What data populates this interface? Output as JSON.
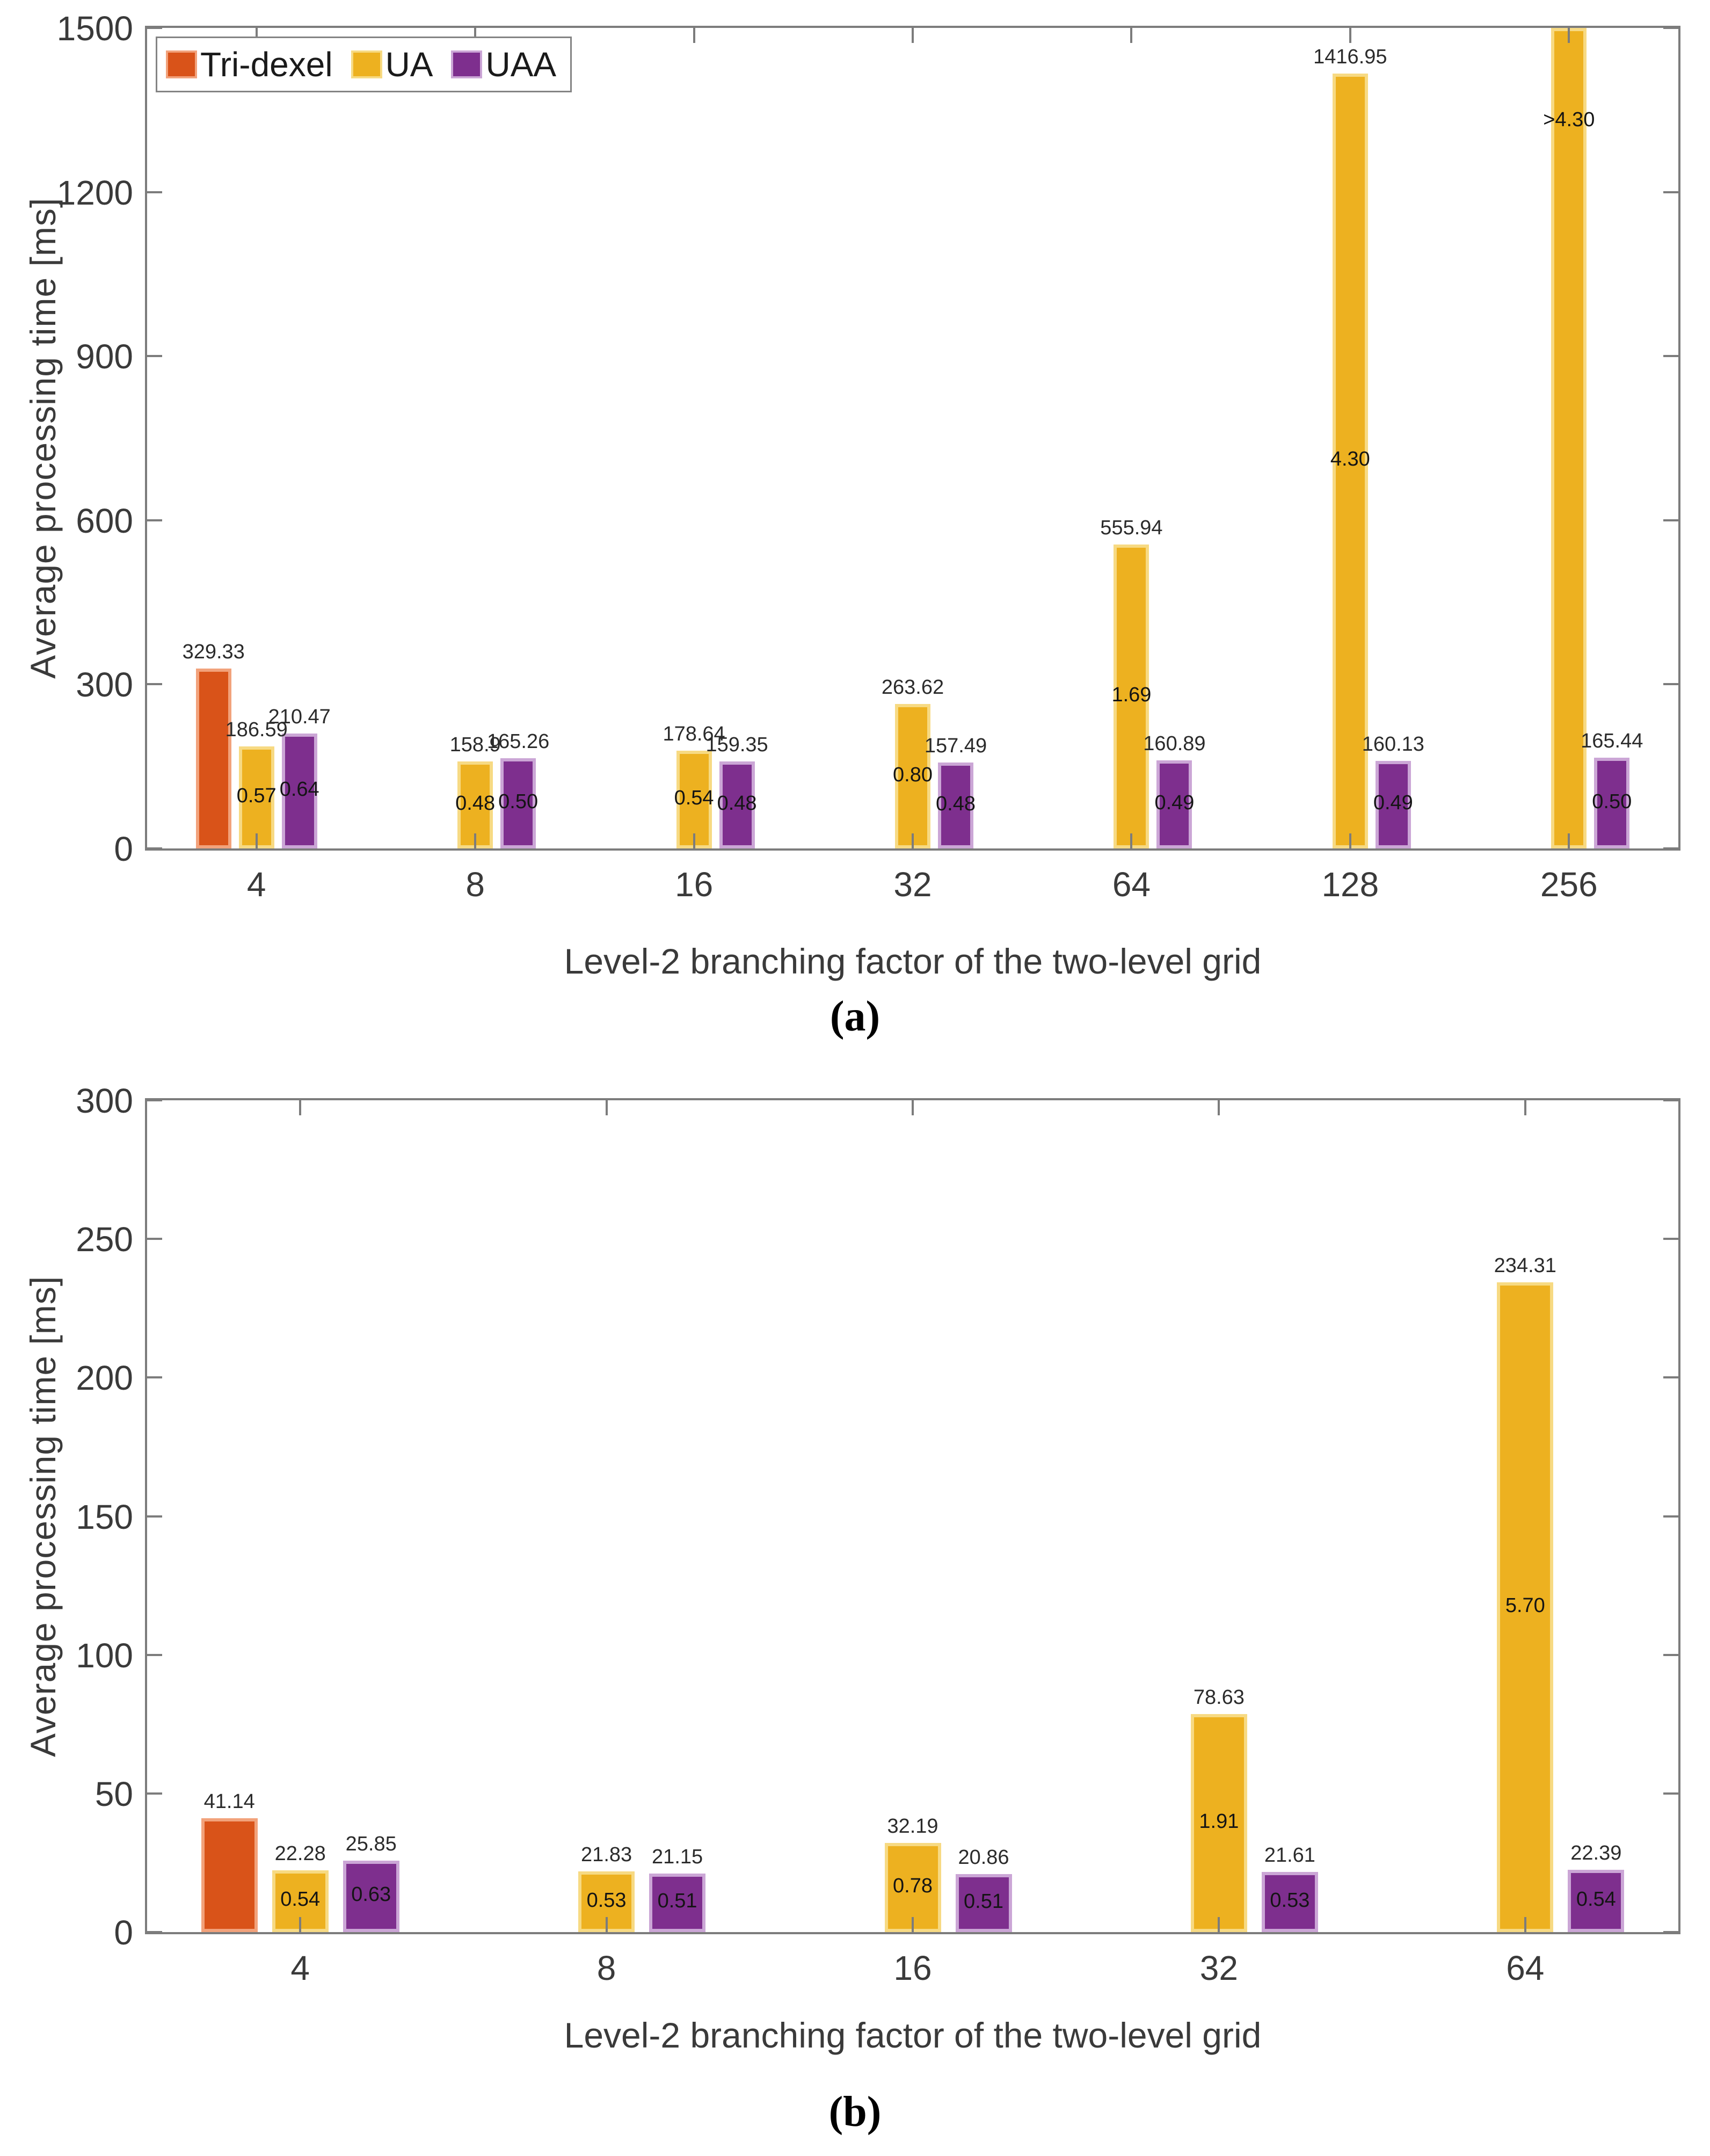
{
  "figure": {
    "name": "average-processing-time-comparison",
    "captions": {
      "a": "(a)",
      "b": "(b)"
    },
    "axis_color": "#7c7c7c",
    "colors": {
      "Tri-dexel": {
        "fill": "#D95319",
        "edge": "#F2A27B"
      },
      "UA": {
        "fill": "#EDB120",
        "edge": "#F7DA83"
      },
      "UAA": {
        "fill": "#7E2F8E",
        "edge": "#CBA6D6"
      }
    },
    "legend": [
      {
        "label": "Tri-dexel"
      },
      {
        "label": "UA"
      },
      {
        "label": "UAA"
      }
    ]
  },
  "chart_data": [
    {
      "id": "a",
      "type": "bar",
      "title": "",
      "xlabel": "Level-2 branching factor of the two-level grid",
      "ylabel": "Average processing time [ms]",
      "ylim": [
        0,
        1500
      ],
      "yticks": [
        0,
        300,
        600,
        900,
        1200,
        1500
      ],
      "grid": false,
      "legend_position": "top-left-inside",
      "categories": [
        "4",
        "8",
        "16",
        "32",
        "64",
        "128",
        "256"
      ],
      "series": [
        {
          "name": "Tri-dexel",
          "values": [
            329.33,
            null,
            null,
            null,
            null,
            null,
            null
          ],
          "labels": [
            "329.33",
            null,
            null,
            null,
            null,
            null,
            null
          ],
          "inside_labels": [
            null,
            null,
            null,
            null,
            null,
            null,
            null
          ],
          "clipped": [
            false,
            false,
            false,
            false,
            false,
            false,
            false
          ]
        },
        {
          "name": "UA",
          "values": [
            186.59,
            158.9,
            178.64,
            263.62,
            555.94,
            1416.95,
            null
          ],
          "labels": [
            "186.59",
            "158.9",
            "178.64",
            "263.62",
            "555.94",
            "1416.95",
            null
          ],
          "inside_labels": [
            "0.57",
            "0.48",
            "0.54",
            "0.80",
            "1.69",
            "4.30",
            ">4.30"
          ],
          "clipped": [
            false,
            false,
            false,
            false,
            false,
            false,
            true
          ],
          "clipped_note": "bar at branching factor 256 exceeds axis maximum of 1500 ms"
        },
        {
          "name": "UAA",
          "values": [
            210.47,
            165.26,
            159.35,
            157.49,
            160.89,
            160.13,
            165.44
          ],
          "labels": [
            "210.47",
            "165.26",
            "159.35",
            "157.49",
            "160.89",
            "160.13",
            "165.44"
          ],
          "inside_labels": [
            "0.64",
            "0.50",
            "0.48",
            "0.48",
            "0.49",
            "0.49",
            "0.50"
          ],
          "clipped": [
            false,
            false,
            false,
            false,
            false,
            false,
            false
          ]
        }
      ]
    },
    {
      "id": "b",
      "type": "bar",
      "title": "",
      "xlabel": "Level-2 branching factor of the two-level grid",
      "ylabel": "Average processing time [ms]",
      "ylim": [
        0,
        300
      ],
      "yticks": [
        0,
        50,
        100,
        150,
        200,
        250,
        300
      ],
      "grid": false,
      "legend_position": "none",
      "categories": [
        "4",
        "8",
        "16",
        "32",
        "64"
      ],
      "series": [
        {
          "name": "Tri-dexel",
          "values": [
            41.14,
            null,
            null,
            null,
            null
          ],
          "labels": [
            "41.14",
            null,
            null,
            null,
            null
          ],
          "inside_labels": [
            null,
            null,
            null,
            null,
            null
          ],
          "clipped": [
            false,
            false,
            false,
            false,
            false
          ]
        },
        {
          "name": "UA",
          "values": [
            22.28,
            21.83,
            32.19,
            78.63,
            234.31
          ],
          "labels": [
            "22.28",
            "21.83",
            "32.19",
            "78.63",
            "234.31"
          ],
          "inside_labels": [
            "0.54",
            "0.53",
            "0.78",
            "1.91",
            "5.70"
          ],
          "clipped": [
            false,
            false,
            false,
            false,
            false
          ]
        },
        {
          "name": "UAA",
          "values": [
            25.85,
            21.15,
            20.86,
            21.61,
            22.39
          ],
          "labels": [
            "25.85",
            "21.15",
            "20.86",
            "21.61",
            "22.39"
          ],
          "inside_labels": [
            "0.63",
            "0.51",
            "0.51",
            "0.53",
            "0.54"
          ],
          "clipped": [
            false,
            false,
            false,
            false,
            false
          ]
        }
      ]
    }
  ]
}
